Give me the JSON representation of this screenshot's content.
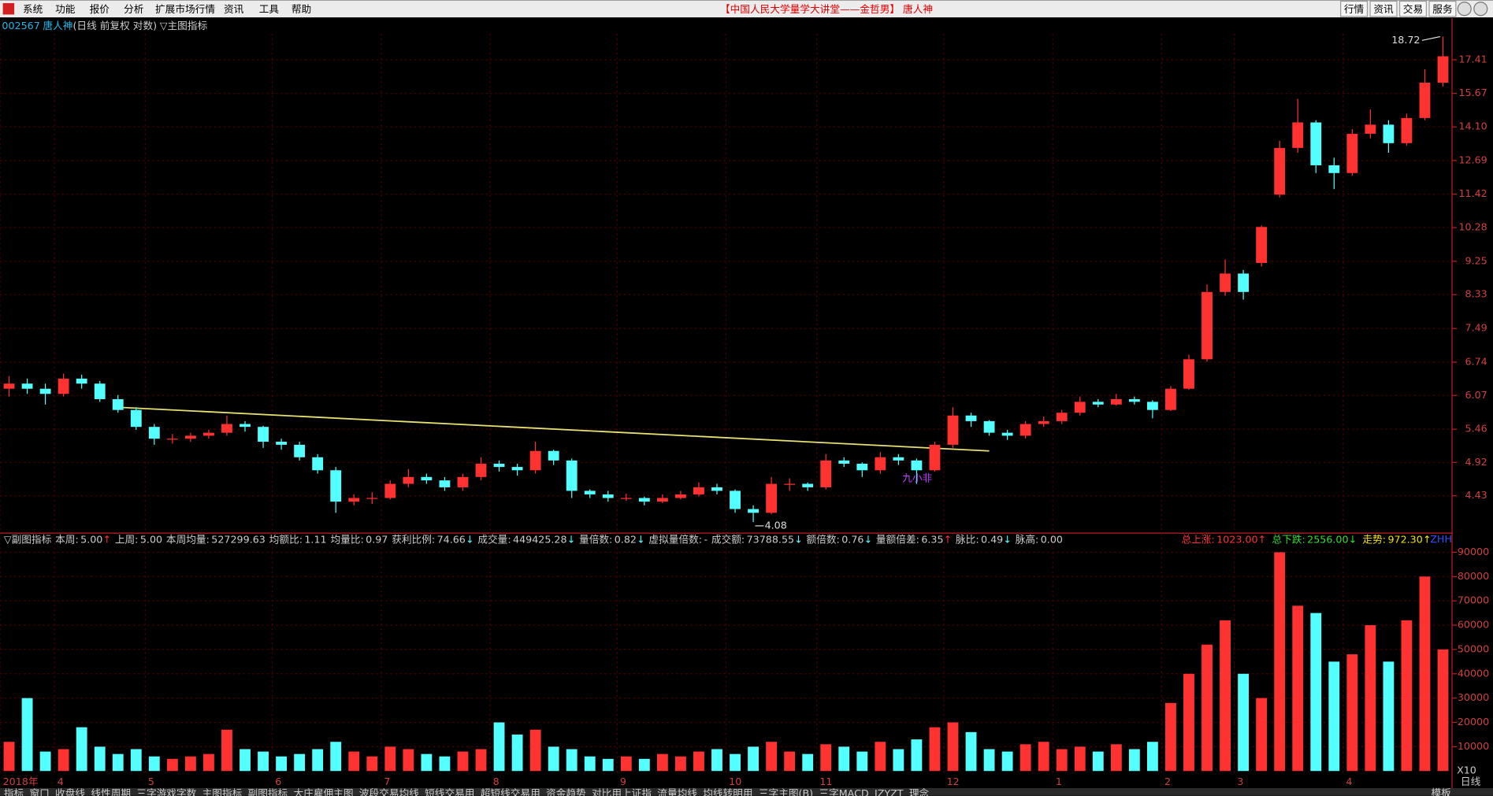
{
  "menu": {
    "items": [
      "系统",
      "功能",
      "报价",
      "分析",
      "扩展市场行情",
      "资讯",
      "工具",
      "帮助"
    ],
    "title": "【中国人民大学量学大讲堂——金哲男】 唐人神",
    "buttons": [
      "行情",
      "资讯",
      "交易",
      "服务"
    ]
  },
  "chart_data": {
    "type": "candlestick",
    "code": "002567",
    "name": "唐人神",
    "mode": "(日线 前复权 对数)",
    "indicator": "▽主图指标",
    "log_scale": true,
    "grid": true,
    "up_color": "#ff3232",
    "down_color": "#54ffff",
    "categories": [
      "2018年",
      null,
      null,
      "4",
      null,
      null,
      null,
      null,
      "5",
      null,
      null,
      null,
      null,
      null,
      null,
      "6",
      null,
      null,
      null,
      null,
      null,
      "7",
      null,
      null,
      null,
      null,
      null,
      "8",
      null,
      null,
      null,
      null,
      null,
      null,
      "9",
      null,
      null,
      null,
      null,
      null,
      "10",
      null,
      null,
      null,
      null,
      "11",
      null,
      null,
      null,
      null,
      null,
      null,
      "12",
      null,
      null,
      null,
      null,
      null,
      "1",
      null,
      null,
      null,
      null,
      null,
      "2",
      null,
      null,
      null,
      "3",
      null,
      null,
      null,
      null,
      null,
      "4",
      null,
      null,
      null,
      null,
      null
    ],
    "open": [
      6.2,
      6.3,
      6.2,
      6.1,
      6.4,
      6.3,
      6.0,
      5.8,
      5.5,
      5.3,
      5.3,
      5.35,
      5.4,
      5.55,
      5.5,
      5.25,
      5.2,
      5.0,
      4.8,
      4.35,
      4.4,
      4.4,
      4.6,
      4.7,
      4.65,
      4.55,
      4.7,
      4.9,
      4.85,
      4.8,
      5.1,
      4.95,
      4.5,
      4.45,
      4.4,
      4.4,
      4.35,
      4.4,
      4.45,
      4.55,
      4.5,
      4.25,
      4.2,
      4.6,
      4.6,
      4.55,
      4.95,
      4.9,
      4.8,
      5.0,
      4.95,
      4.8,
      5.2,
      5.7,
      5.6,
      5.4,
      5.35,
      5.55,
      5.6,
      5.75,
      5.95,
      5.9,
      6.0,
      5.95,
      5.8,
      6.2,
      6.8,
      8.4,
      8.9,
      9.2,
      11.4,
      13.2,
      14.3,
      12.5,
      12.2,
      13.8,
      14.2,
      13.4,
      14.5,
      16.2
    ],
    "high": [
      6.45,
      6.4,
      6.3,
      6.5,
      6.48,
      6.35,
      6.08,
      5.85,
      5.55,
      5.38,
      5.4,
      5.45,
      5.7,
      5.6,
      5.52,
      5.3,
      5.25,
      5.05,
      4.85,
      4.45,
      4.48,
      4.65,
      4.82,
      4.75,
      4.7,
      4.75,
      5.0,
      4.95,
      4.9,
      5.25,
      5.12,
      4.98,
      4.52,
      4.5,
      4.46,
      4.42,
      4.45,
      4.5,
      4.62,
      4.6,
      4.52,
      4.3,
      4.7,
      4.68,
      4.62,
      5.05,
      5.0,
      4.92,
      5.08,
      5.05,
      4.98,
      5.25,
      5.85,
      5.75,
      5.62,
      5.45,
      5.6,
      5.68,
      5.8,
      6.05,
      6.0,
      6.1,
      6.05,
      5.98,
      6.25,
      6.9,
      8.6,
      9.3,
      9.0,
      10.35,
      13.5,
      15.4,
      14.4,
      12.8,
      14.0,
      14.9,
      14.4,
      14.7,
      16.9,
      18.72
    ],
    "low": [
      6.05,
      6.1,
      5.9,
      6.05,
      6.2,
      5.95,
      5.75,
      5.45,
      5.2,
      5.22,
      5.25,
      5.3,
      5.35,
      5.42,
      5.15,
      5.12,
      4.95,
      4.75,
      4.2,
      4.3,
      4.32,
      4.38,
      4.55,
      4.6,
      4.5,
      4.5,
      4.65,
      4.78,
      4.72,
      4.75,
      4.88,
      4.4,
      4.4,
      4.35,
      4.36,
      4.3,
      4.33,
      4.38,
      4.42,
      4.45,
      4.2,
      4.08,
      4.18,
      4.5,
      4.5,
      4.52,
      4.85,
      4.7,
      4.75,
      4.88,
      4.6,
      4.78,
      5.15,
      5.5,
      5.35,
      5.28,
      5.3,
      5.5,
      5.55,
      5.7,
      5.85,
      5.88,
      5.9,
      5.65,
      5.78,
      6.18,
      6.75,
      8.3,
      8.2,
      9.1,
      11.3,
      13.0,
      12.2,
      11.6,
      12.1,
      13.6,
      13.0,
      13.3,
      14.4,
      16.0
    ],
    "close": [
      6.3,
      6.2,
      6.1,
      6.4,
      6.3,
      6.0,
      5.8,
      5.5,
      5.3,
      5.3,
      5.35,
      5.4,
      5.55,
      5.5,
      5.25,
      5.2,
      5.0,
      4.8,
      4.35,
      4.4,
      4.4,
      4.6,
      4.7,
      4.65,
      4.55,
      4.7,
      4.9,
      4.85,
      4.8,
      5.1,
      4.95,
      4.5,
      4.45,
      4.4,
      4.4,
      4.35,
      4.4,
      4.45,
      4.55,
      4.5,
      4.25,
      4.2,
      4.6,
      4.6,
      4.55,
      4.95,
      4.9,
      4.8,
      5.0,
      4.95,
      4.8,
      5.2,
      5.7,
      5.6,
      5.4,
      5.35,
      5.55,
      5.6,
      5.75,
      5.95,
      5.9,
      6.0,
      5.95,
      5.8,
      6.2,
      6.8,
      8.4,
      8.9,
      8.4,
      10.3,
      13.2,
      14.3,
      12.5,
      12.2,
      13.8,
      14.2,
      13.4,
      14.5,
      16.2,
      17.6
    ],
    "ylim": [
      4.0,
      18.9
    ],
    "yticks": [
      4.43,
      4.92,
      5.46,
      6.07,
      6.74,
      7.49,
      8.33,
      9.25,
      10.28,
      11.42,
      12.69,
      {
        "value": 14.1,
        "label": "14.10"
      },
      15.67,
      17.41
    ],
    "trendline": {
      "color": "#e8e070",
      "start": [
        6,
        5.85
      ],
      "end": [
        54,
        5.1
      ]
    },
    "annotation": "九小非",
    "volume": {
      "title": "▽副图指标",
      "ylim": [
        0,
        92000
      ],
      "yticks": [
        10000,
        20000,
        30000,
        40000,
        50000,
        60000,
        70000,
        80000,
        90000
      ],
      "unit": "X10",
      "tag": "ZHH",
      "values": [
        12000,
        30000,
        8000,
        9000,
        18000,
        10000,
        7000,
        9000,
        6000,
        5000,
        6000,
        7000,
        17000,
        9000,
        8000,
        6000,
        7000,
        9000,
        12000,
        8000,
        6000,
        10000,
        9000,
        7000,
        6000,
        8000,
        9000,
        20000,
        15000,
        17000,
        10000,
        9000,
        6000,
        5000,
        6000,
        5000,
        7000,
        6000,
        8000,
        9000,
        7000,
        10000,
        12000,
        8000,
        7000,
        11000,
        10000,
        8000,
        12000,
        9000,
        13000,
        18000,
        20000,
        16000,
        9000,
        8000,
        11000,
        12000,
        9000,
        10000,
        8000,
        11000,
        9000,
        12000,
        28000,
        40000,
        52000,
        62000,
        40000,
        30000,
        90000,
        68000,
        65000,
        45000,
        48000,
        60000,
        45000,
        62000,
        80000,
        50000
      ],
      "stats": [
        {
          "label": "本周:",
          "value": "5.00",
          "arrow": "↑",
          "color": "#ff3232"
        },
        {
          "label": "上周:",
          "value": "5.00"
        },
        {
          "label": "本周均量:",
          "value": "527299.63"
        },
        {
          "label": "均额比:",
          "value": "1.11"
        },
        {
          "label": "均量比:",
          "value": "0.97"
        },
        {
          "label": "获利比例:",
          "value": "74.66",
          "arrow": "↓",
          "color": "#54ffff"
        },
        {
          "label": "成交量:",
          "value": "449425.28",
          "arrow": "↓",
          "color": "#54ffff"
        },
        {
          "label": "量倍数:",
          "value": "0.82",
          "arrow": "↓",
          "color": "#54ffff"
        },
        {
          "label": "虚拟量倍数:",
          "value": "-"
        },
        {
          "label": "成交额:",
          "value": "73788.55",
          "arrow": "↓",
          "color": "#54ffff"
        },
        {
          "label": "额倍数:",
          "value": "0.76",
          "arrow": "↓",
          "color": "#54ffff"
        },
        {
          "label": "量额倍差:",
          "value": "6.35",
          "arrow": "↑",
          "color": "#ff3232"
        },
        {
          "label": "脉比:",
          "value": "0.49",
          "arrow": "↓",
          "color": "#54ffff"
        },
        {
          "label": "脉高:",
          "value": "0.00"
        }
      ],
      "totals": [
        {
          "label": "总上涨:",
          "value": "1023.00",
          "arrow": "↑",
          "color": "#ff3232"
        },
        {
          "label": "总下跌:",
          "value": "2556.00",
          "arrow": "↓",
          "color": "#33dd33"
        },
        {
          "label": "走势:",
          "value": "972.30",
          "arrow": "↑",
          "color": "#f0e000"
        }
      ]
    }
  },
  "tabs": [
    "指标",
    "窗口",
    "收盘线",
    "线性周期",
    "三字游戏字数",
    "主图指标",
    "副图指标",
    "大庄雇佣主图",
    "波段交易均线",
    "短线交易用",
    "超短线交易用",
    "资金趋势",
    "对比用上证指",
    "流量均线",
    "均线转明用",
    "三字主图(B)",
    "三字MACD",
    "JZYZT",
    "理念"
  ],
  "template": "模板",
  "period": "日线"
}
